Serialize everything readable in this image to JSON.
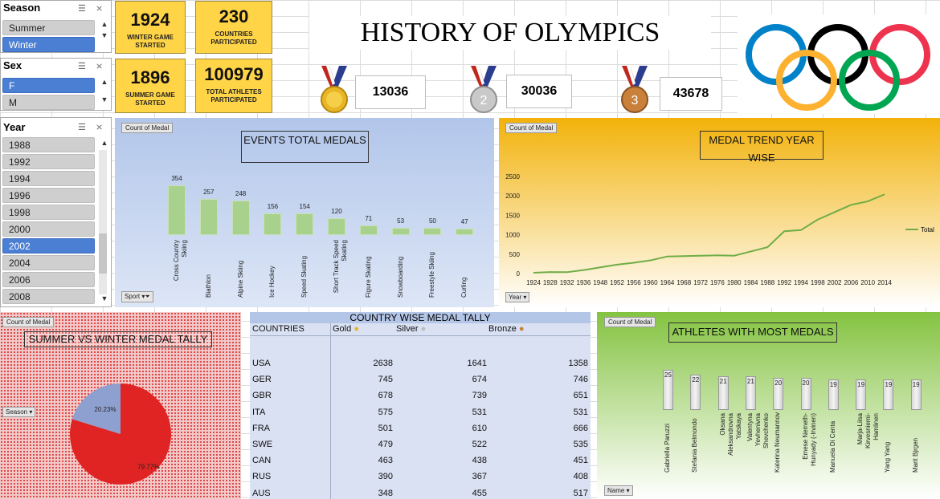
{
  "slicers": {
    "season": {
      "title": "Season",
      "items": [
        {
          "label": "Summer",
          "selected": false
        },
        {
          "label": "Winter",
          "selected": true
        }
      ]
    },
    "sex": {
      "title": "Sex",
      "items": [
        {
          "label": "F",
          "selected": true
        },
        {
          "label": "M",
          "selected": false
        }
      ]
    },
    "year": {
      "title": "Year",
      "items": [
        {
          "label": "1988",
          "selected": false
        },
        {
          "label": "1992",
          "selected": false
        },
        {
          "label": "1994",
          "selected": false
        },
        {
          "label": "1996",
          "selected": false
        },
        {
          "label": "1998",
          "selected": false
        },
        {
          "label": "2000",
          "selected": false
        },
        {
          "label": "2002",
          "selected": true
        },
        {
          "label": "2004",
          "selected": false
        },
        {
          "label": "2006",
          "selected": false
        },
        {
          "label": "2008",
          "selected": false
        }
      ]
    }
  },
  "kpis": [
    {
      "value": "1924",
      "label": "WINTER GAME STARTED"
    },
    {
      "value": "230",
      "label": "COUNTRIES PARTICIPATED"
    },
    {
      "value": "1896",
      "label": "SUMMER GAME STARTED"
    },
    {
      "value": "100979",
      "label": "TOTAL ATHLETES PARTICIPATED"
    }
  ],
  "title": "HISTORY OF OLYMPICS",
  "medals": {
    "gold": "13036",
    "silver": "30036",
    "bronze": "43678",
    "silver_digit": "2",
    "bronze_digit": "3"
  },
  "colors": {
    "gold": "#e8b625",
    "silver": "#bdbdbd",
    "bronze": "#c8803a",
    "bar": "#a9d18e",
    "line": "#70ad47",
    "pie_red": "#e02424",
    "pie_blue": "#8ea0d0"
  },
  "events": {
    "tag": "Count of Medal",
    "title": "EVENTS TOTAL MEDALS",
    "filter": "Sport",
    "chart_data": {
      "type": "bar",
      "categories": [
        "Cross Country Skiing",
        "Biathlon",
        "Alpine Skiing",
        "Ice Hockey",
        "Speed Skating",
        "Short Track Speed Skating",
        "Figure Skating",
        "Snowboarding",
        "Freestyle Skiing",
        "Curling"
      ],
      "values": [
        354,
        257,
        248,
        156,
        154,
        120,
        71,
        53,
        50,
        47
      ]
    }
  },
  "trend": {
    "tag": "Count of Medal",
    "title": "MEDAL TREND YEAR WISE",
    "filter": "Year",
    "legend": "Total",
    "chart_data": {
      "type": "line",
      "ylim": [
        0,
        2500
      ],
      "yticks": [
        "0",
        "500",
        "1000",
        "1500",
        "2000",
        "2500"
      ],
      "x": [
        "1924",
        "1928",
        "1932",
        "1936",
        "1948",
        "1952",
        "1956",
        "1960",
        "1964",
        "1968",
        "1972",
        "1976",
        "1980",
        "1984",
        "1988",
        "1992",
        "1994",
        "1998",
        "2002",
        "2006",
        "2010",
        "2014"
      ],
      "values": [
        20,
        40,
        35,
        90,
        160,
        230,
        280,
        340,
        440,
        450,
        460,
        470,
        460,
        570,
        680,
        1090,
        1120,
        1390,
        1580,
        1770,
        1860,
        2040
      ]
    }
  },
  "pie": {
    "tag": "Count of Medal",
    "title": "SUMMER VS WINTER MEDAL TALLY",
    "filter": "Season",
    "chart_data": {
      "type": "pie",
      "labels": [
        "Summer",
        "Winter"
      ],
      "values": [
        79.77,
        20.23
      ],
      "value_labels": [
        "79.77%",
        "20.23%"
      ]
    }
  },
  "tally": {
    "title": "COUNTRY WISE MEDAL TALLY",
    "headers": {
      "country": "COUNTRIES",
      "gold": "Gold",
      "silver": "Silver",
      "bronze": "Bronze"
    },
    "rows": [
      {
        "c": "USA",
        "g": "2638",
        "s": "1641",
        "b": "1358"
      },
      {
        "c": "GER",
        "g": "745",
        "s": "674",
        "b": "746"
      },
      {
        "c": "GBR",
        "g": "678",
        "s": "739",
        "b": "651"
      },
      {
        "c": "ITA",
        "g": "575",
        "s": "531",
        "b": "531"
      },
      {
        "c": "FRA",
        "g": "501",
        "s": "610",
        "b": "666"
      },
      {
        "c": "SWE",
        "g": "479",
        "s": "522",
        "b": "535"
      },
      {
        "c": "CAN",
        "g": "463",
        "s": "438",
        "b": "451"
      },
      {
        "c": "RUS",
        "g": "390",
        "s": "367",
        "b": "408"
      },
      {
        "c": "AUS",
        "g": "348",
        "s": "455",
        "b": "517"
      }
    ]
  },
  "athletes": {
    "tag": "Count of Medal",
    "title": "ATHLETES WITH MOST MEDALS",
    "filter": "Name",
    "chart_data": {
      "type": "bar",
      "categories": [
        "Gabriella Paruzzi",
        "Stefania Belmondo",
        "Oksana Aleksandrovna Yatskaya",
        "Valentyna Yevhenivna Shevchenko",
        "Katerina Neumannov",
        "Emese Nemeth-Hunyady (-Irvinen)",
        "Manuela Di Centa",
        "Marja-Liisa Kirvesniemi-Hamlinen",
        "Yang Yang",
        "Marit Bjrgen"
      ],
      "values": [
        25,
        22,
        21,
        21,
        20,
        20,
        19,
        19,
        19,
        19
      ]
    }
  }
}
